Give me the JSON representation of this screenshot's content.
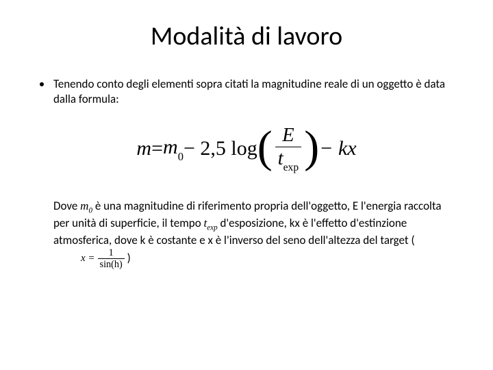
{
  "title": "Modalità di lavoro",
  "bullet": "Tenendo conto degli elementi sopra citati la magnitudine reale di un oggetto è data dalla formula:",
  "formula": {
    "lhs_var": "m",
    "eq": " = ",
    "m0_var": "m",
    "m0_sub": "0",
    "minus25log": " − 2,5 log",
    "frac_num": "E",
    "frac_den_t": "t",
    "frac_den_sub": "exp",
    "tail": " − kx"
  },
  "desc": {
    "p1a": "Dove ",
    "p1b": "è una magnitudine di riferimento propria dell'oggetto, E l'energia raccolta per unità di superficie,        il tempo ",
    "p1c": "d'esposizione, kx è l'effetto d'estinzione atmosferica, dove k è costante e x è l'inverso del seno dell'altezza del target (",
    "p1d": ")",
    "m0_var": "m",
    "m0_sub": "0",
    "t_var": "t",
    "t_sub": "exp",
    "x_eq": "x = ",
    "x_num": "1",
    "x_den": "sin(h)"
  }
}
